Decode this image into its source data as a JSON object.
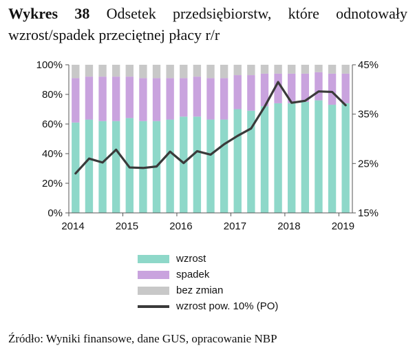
{
  "title": {
    "label": "Wykres 38",
    "text": "Odsetek przedsiębiorstw, które odnotowały wzrost/spadek przeciętnej płacy r/r"
  },
  "source": "Źródło: Wyniki finansowe, dane GUS, opracowanie NBP",
  "colors": {
    "wzrost": "#8ed8c9",
    "spadek": "#c9a3de",
    "bez_zmian": "#c8c8c8",
    "line": "#3a3a3a",
    "axis": "#555555"
  },
  "chart_data": {
    "type": "bar",
    "stacked": true,
    "x_tick_labels": [
      "2014",
      "2015",
      "2016",
      "2017",
      "2018",
      "2019"
    ],
    "categories": [
      "2014Q1",
      "2014Q2",
      "2014Q3",
      "2014Q4",
      "2015Q1",
      "2015Q2",
      "2015Q3",
      "2015Q4",
      "2016Q1",
      "2016Q2",
      "2016Q3",
      "2016Q4",
      "2017Q1",
      "2017Q2",
      "2017Q3",
      "2017Q4",
      "2018Q1",
      "2018Q2",
      "2018Q3",
      "2018Q4",
      "2019Q1"
    ],
    "series": [
      {
        "name": "wzrost",
        "axis": "left",
        "values": [
          61,
          63,
          62,
          62,
          64,
          62,
          62,
          63,
          65,
          65,
          63,
          63,
          70,
          69,
          72,
          74,
          74,
          75,
          76,
          73,
          74
        ]
      },
      {
        "name": "spadek",
        "axis": "left",
        "values": [
          30,
          29,
          30,
          30,
          28,
          29,
          29,
          28,
          26,
          27,
          28,
          28,
          23,
          24,
          22,
          20,
          20,
          19,
          19,
          21,
          20
        ]
      },
      {
        "name": "bez zmian",
        "axis": "left",
        "values": [
          9,
          8,
          8,
          8,
          8,
          9,
          9,
          9,
          9,
          8,
          9,
          9,
          7,
          7,
          6,
          6,
          6,
          6,
          5,
          6,
          6
        ]
      }
    ],
    "line_series": {
      "name": "wzrost pow. 10% (PO)",
      "axis": "right",
      "values": [
        23.0,
        26.0,
        25.2,
        27.8,
        24.2,
        24.1,
        24.4,
        27.4,
        25.1,
        27.5,
        26.8,
        28.9,
        30.6,
        32.1,
        36.5,
        41.5,
        37.3,
        37.7,
        39.6,
        39.5,
        36.8
      ]
    },
    "y_left": {
      "ylim": [
        0,
        100
      ],
      "ticks": [
        "0%",
        "20%",
        "40%",
        "60%",
        "80%",
        "100%"
      ]
    },
    "y_right": {
      "ylim": [
        15,
        45
      ],
      "ticks": [
        "15%",
        "25%",
        "35%",
        "45%"
      ]
    },
    "legend": [
      {
        "label": "wzrost",
        "kind": "bar",
        "key": "wzrost"
      },
      {
        "label": "spadek",
        "kind": "bar",
        "key": "spadek"
      },
      {
        "label": "bez zmian",
        "kind": "bar",
        "key": "bez_zmian"
      },
      {
        "label": "wzrost pow. 10% (PO)",
        "kind": "line",
        "key": "line"
      }
    ],
    "legend_position": "bottom"
  }
}
